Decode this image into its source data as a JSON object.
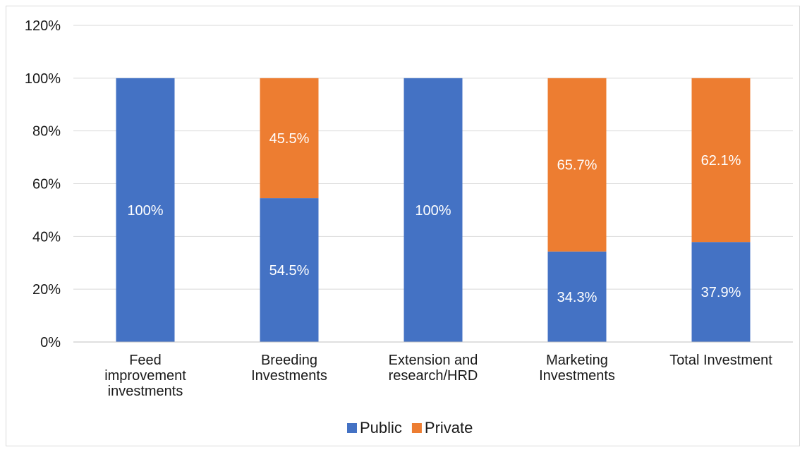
{
  "chart_data": {
    "type": "bar",
    "stacked": true,
    "categories": [
      [
        "Feed",
        "improvement",
        "investments"
      ],
      [
        "Breeding",
        "Investments"
      ],
      [
        "Extension and",
        "research/HRD"
      ],
      [
        "Marketing",
        "Investments"
      ],
      [
        "Total Investment"
      ]
    ],
    "series": [
      {
        "name": "Public",
        "color": "#4472c4",
        "values": [
          100,
          54.5,
          100,
          34.3,
          37.9
        ],
        "labels": [
          "100%",
          "54.5%",
          "100%",
          "34.3%",
          "37.9%"
        ]
      },
      {
        "name": "Private",
        "color": "#ed7d31",
        "values": [
          0,
          45.5,
          0,
          65.7,
          62.1
        ],
        "labels": [
          "",
          "45.5%",
          "",
          "65.7%",
          "62.1%"
        ]
      }
    ],
    "ylim": [
      0,
      120
    ],
    "yticks": [
      0,
      20,
      40,
      60,
      80,
      100,
      120
    ],
    "ytick_labels": [
      "0%",
      "20%",
      "40%",
      "60%",
      "80%",
      "100%",
      "120%"
    ],
    "grid": true,
    "legend": "bottom",
    "title": "",
    "xlabel": "",
    "ylabel": ""
  }
}
